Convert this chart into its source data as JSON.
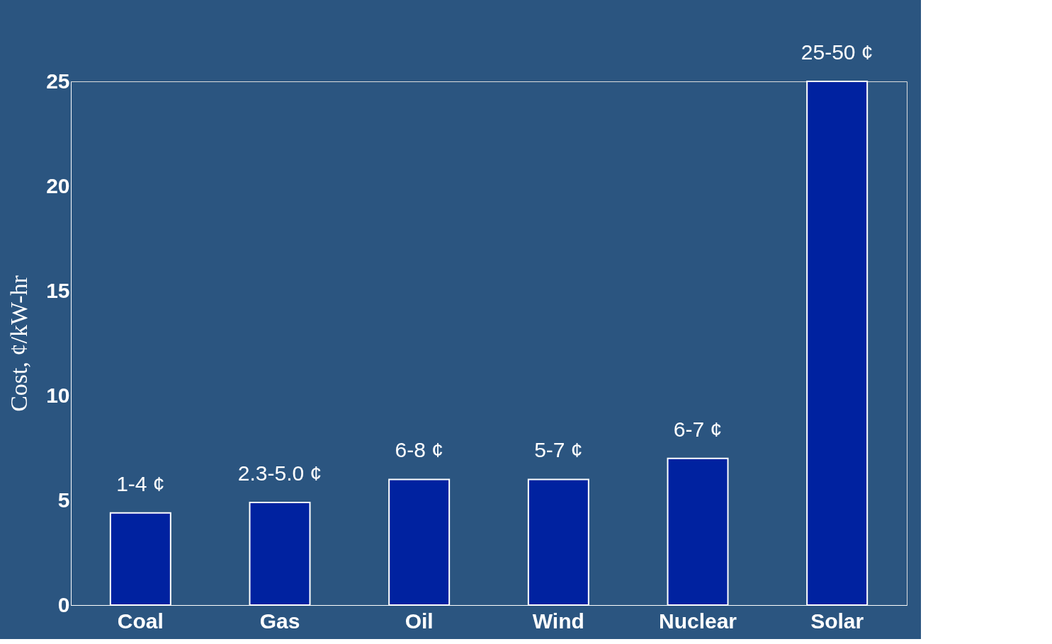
{
  "chart_data": {
    "type": "bar",
    "ylabel": "Cost, ¢/kW-hr",
    "categories": [
      "Coal",
      "Gas",
      "Oil",
      "Wind",
      "Nuclear",
      "Solar"
    ],
    "values": [
      4.4,
      4.9,
      6.0,
      6.0,
      7.0,
      25.0
    ],
    "value_labels": [
      "1-4 ¢",
      "2.3-5.0 ¢",
      "6-8 ¢",
      "5-7 ¢",
      "6-7 ¢",
      "25-50 ¢"
    ],
    "color": "#0022a0",
    "ylim": [
      0,
      25
    ],
    "yticks": [
      0,
      5,
      10,
      15,
      20,
      25
    ],
    "grid": false
  }
}
